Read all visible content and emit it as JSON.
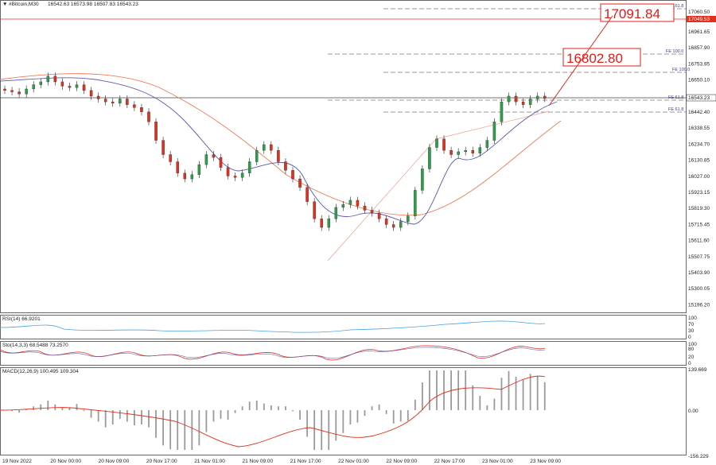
{
  "header": {
    "symbol": "#Bitcoin,M30",
    "ohlc": "16542.63 16573.98 16507.83 16543.23"
  },
  "price_axis": {
    "ticks": [
      "16961.65",
      "16857.90",
      "16753.95",
      "16650.10",
      "16442.40",
      "16338.55",
      "16234.70",
      "16130.85",
      "16027.00",
      "15923.15",
      "15819.30",
      "15715.45",
      "15611.60",
      "15507.75",
      "15403.90",
      "15300.05",
      "15196.20"
    ],
    "current": "16543.23",
    "top_red": "17049.53",
    "top_label": "17060.50"
  },
  "time_axis": {
    "labels": [
      "19 Nov 2022",
      "20 Nov 00:00",
      "20 Nov 09:00",
      "20 Nov 17:00",
      "21 Nov 01:00",
      "21 Nov 09:00",
      "21 Nov 17:00",
      "22 Nov 01:00",
      "22 Nov 09:00",
      "22 Nov 17:00",
      "23 Nov 01:00",
      "23 Nov 09:00"
    ]
  },
  "fib_levels": [
    {
      "label": "FE 161.8"
    },
    {
      "label": "FE 100.0"
    },
    {
      "label": "FE 100.0"
    },
    {
      "label": "FE 61.8"
    },
    {
      "label": "FE 61.8"
    }
  ],
  "targets": {
    "t1": "17091.84",
    "t2": "16802.80"
  },
  "rsi": {
    "label": "RSI(14) 66.9201",
    "ticks": [
      "100",
      "70",
      "30",
      "0"
    ]
  },
  "stoch": {
    "label": "Sto(14,3,3) 68.5488 73.2570",
    "ticks": [
      "100",
      "80",
      "20",
      "0"
    ]
  },
  "macd": {
    "label": "MACD(12,26,9) 100.495 109.304",
    "ticks": [
      "139.669",
      "0.00",
      "-156.229"
    ]
  },
  "chart_data": {
    "type": "line",
    "title": "#Bitcoin,M30",
    "price_range": [
      15150,
      17100
    ],
    "series": [
      {
        "name": "close",
        "values": [
          16600,
          16590,
          16575,
          16610,
          16640,
          16660,
          16700,
          16660,
          16630,
          16620,
          16640,
          16600,
          16560,
          16540,
          16520,
          16510,
          16540,
          16500,
          16480,
          16450,
          16380,
          16250,
          16150,
          16100,
          16020,
          15980,
          16010,
          16080,
          16150,
          16130,
          16060,
          16000,
          15990,
          16020,
          16100,
          16180,
          16220,
          16180,
          16100,
          16040,
          15980,
          15920,
          15820,
          15700,
          15640,
          15700,
          15780,
          15800,
          15830,
          15790,
          15760,
          15740,
          15700,
          15660,
          15640,
          15680,
          15720,
          15900,
          16050,
          16200,
          16260,
          16180,
          16150,
          16170,
          16180,
          16160,
          16200,
          16250,
          16380,
          16520,
          16560,
          16520,
          16500,
          16540,
          16560,
          16543
        ]
      }
    ]
  }
}
